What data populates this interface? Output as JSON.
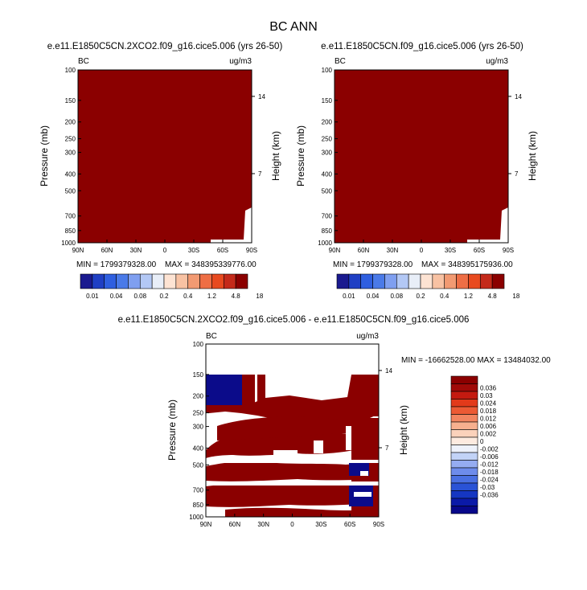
{
  "page_title": "BC ANN",
  "colorbar_colors_14": [
    "#1a1a8f",
    "#1f3fc4",
    "#2f5fe0",
    "#4a7ae8",
    "#7f9ff0",
    "#b3c8f5",
    "#e8eef8",
    "#fde3d3",
    "#f8c2a3",
    "#f29a72",
    "#ee6e45",
    "#e84a1f",
    "#c42a1a",
    "#8b0000"
  ],
  "colorbar_colors_18": [
    "#08088a",
    "#0b1aa8",
    "#1536c2",
    "#2a53d6",
    "#4a70e2",
    "#6e8ceb",
    "#95acf1",
    "#c2d3f7",
    "#eef2fb",
    "#fdebe0",
    "#fbd2bb",
    "#f7b08f",
    "#f28560",
    "#ec5a34",
    "#e23a1a",
    "#c41a10",
    "#a00a08",
    "#8b0000"
  ],
  "chart_data": [
    {
      "type": "heatmap",
      "title": "e.e11.E1850C5CN.2XCO2.f09_g16.cice5.006 (yrs 26-50)",
      "left_label": "BC",
      "units": "ug/m3",
      "ylabel": "Pressure (mb)",
      "y2label": "Height (km)",
      "x_ticks": [
        "90N",
        "60N",
        "30N",
        "0",
        "30S",
        "60S",
        "90S"
      ],
      "y_ticks": [
        "100",
        "150",
        "200",
        "250",
        "300",
        "400",
        "500",
        "700",
        "850",
        "1000"
      ],
      "y2_ticks": [
        "14",
        "7"
      ],
      "min_text": "MIN = 1799379328.00",
      "max_text": "MAX = 348395339776.00",
      "colorbar_labels": [
        "0.01",
        "0.04",
        "0.08",
        "0.2",
        "0.4",
        "1.2",
        "4.8",
        "18"
      ]
    },
    {
      "type": "heatmap",
      "title": "e.e11.E1850C5CN.f09_g16.cice5.006 (yrs 26-50)",
      "left_label": "BC",
      "units": "ug/m3",
      "ylabel": "Pressure (mb)",
      "y2label": "Height (km)",
      "x_ticks": [
        "90N",
        "60N",
        "30N",
        "0",
        "30S",
        "60S",
        "90S"
      ],
      "y_ticks": [
        "100",
        "150",
        "200",
        "250",
        "300",
        "400",
        "500",
        "700",
        "850",
        "1000"
      ],
      "y2_ticks": [
        "14",
        "7"
      ],
      "min_text": "MIN = 1799379328.00",
      "max_text": "MAX = 348395175936.00",
      "colorbar_labels": [
        "0.01",
        "0.04",
        "0.08",
        "0.2",
        "0.4",
        "1.2",
        "4.8",
        "18"
      ]
    },
    {
      "type": "heatmap",
      "title": "e.e11.E1850C5CN.2XCO2.f09_g16.cice5.006 - e.e11.E1850C5CN.f09_g16.cice5.006",
      "left_label": "BC",
      "units": "ug/m3",
      "ylabel": "Pressure (mb)",
      "y2label": "Height (km)",
      "x_ticks": [
        "90N",
        "60N",
        "30N",
        "0",
        "30S",
        "60S",
        "90S"
      ],
      "y_ticks": [
        "100",
        "150",
        "200",
        "250",
        "300",
        "400",
        "500",
        "700",
        "850",
        "1000"
      ],
      "y2_ticks": [
        "14",
        "7"
      ],
      "minmax_text": "MIN = -16662528.00  MAX = 13484032.00",
      "colorbar_labels": [
        "0.036",
        "0.03",
        "0.024",
        "0.018",
        "0.012",
        "0.006",
        "0.002",
        "0",
        "-0.002",
        "-0.006",
        "-0.012",
        "-0.018",
        "-0.024",
        "-0.03",
        "-0.036"
      ]
    }
  ]
}
